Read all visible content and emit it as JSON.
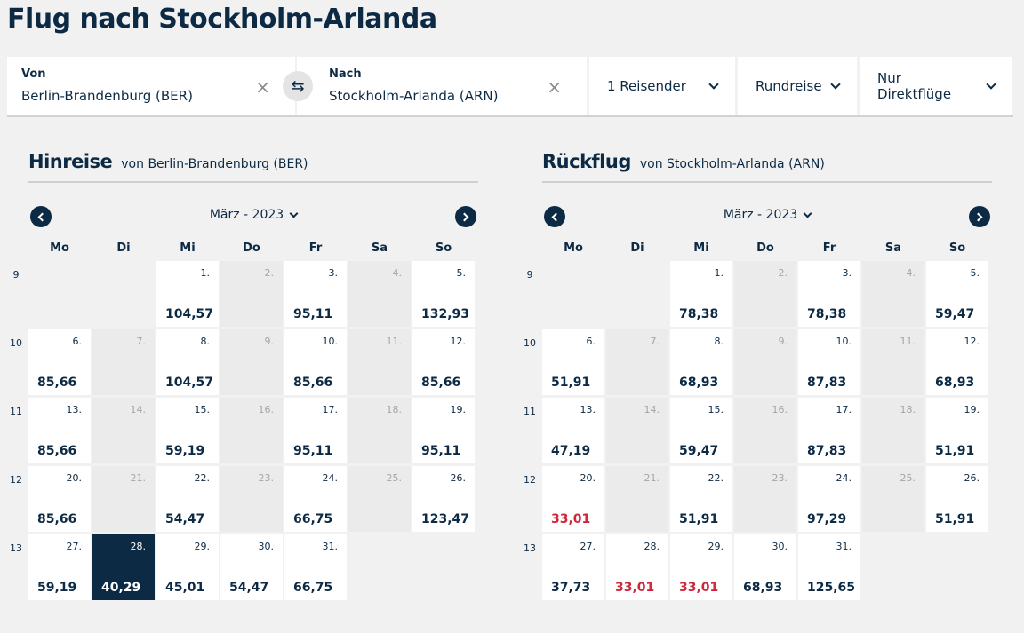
{
  "title": "Flug nach Stockholm-Arlanda",
  "search": {
    "from_label": "Von",
    "from_value": "Berlin-Brandenburg (BER)",
    "to_label": "Nach",
    "to_value": "Stockholm-Arlanda (ARN)",
    "clear_glyph": "×",
    "swap_glyph": "⇆",
    "travelers": "1 Reisender",
    "trip_type": "Rundreise",
    "flight_filter": "Nur Direktflüge"
  },
  "weekdays": [
    "Mo",
    "Di",
    "Mi",
    "Do",
    "Fr",
    "Sa",
    "So"
  ],
  "outbound": {
    "title": "Hinreise",
    "subtitle": "von Berlin-Brandenburg (BER)",
    "month": "März - 2023",
    "weeks": [
      {
        "num": "9",
        "days": [
          null,
          null,
          {
            "d": "1.",
            "p": "104,57"
          },
          {
            "d": "2.",
            "u": true
          },
          {
            "d": "3.",
            "p": "95,11"
          },
          {
            "d": "4.",
            "u": true
          },
          {
            "d": "5.",
            "p": "132,93"
          }
        ]
      },
      {
        "num": "10",
        "days": [
          {
            "d": "6.",
            "p": "85,66"
          },
          {
            "d": "7.",
            "u": true
          },
          {
            "d": "8.",
            "p": "104,57"
          },
          {
            "d": "9.",
            "u": true
          },
          {
            "d": "10.",
            "p": "85,66"
          },
          {
            "d": "11.",
            "u": true
          },
          {
            "d": "12.",
            "p": "85,66"
          }
        ]
      },
      {
        "num": "11",
        "days": [
          {
            "d": "13.",
            "p": "85,66"
          },
          {
            "d": "14.",
            "u": true
          },
          {
            "d": "15.",
            "p": "59,19"
          },
          {
            "d": "16.",
            "u": true
          },
          {
            "d": "17.",
            "p": "95,11"
          },
          {
            "d": "18.",
            "u": true
          },
          {
            "d": "19.",
            "p": "95,11"
          }
        ]
      },
      {
        "num": "12",
        "days": [
          {
            "d": "20.",
            "p": "85,66"
          },
          {
            "d": "21.",
            "u": true
          },
          {
            "d": "22.",
            "p": "54,47"
          },
          {
            "d": "23.",
            "u": true
          },
          {
            "d": "24.",
            "p": "66,75"
          },
          {
            "d": "25.",
            "u": true
          },
          {
            "d": "26.",
            "p": "123,47"
          }
        ]
      },
      {
        "num": "13",
        "days": [
          {
            "d": "27.",
            "p": "59,19"
          },
          {
            "d": "28.",
            "p": "40,29",
            "sel": true
          },
          {
            "d": "29.",
            "p": "45,01"
          },
          {
            "d": "30.",
            "p": "54,47"
          },
          {
            "d": "31.",
            "p": "66,75"
          },
          null,
          null
        ]
      }
    ]
  },
  "return": {
    "title": "Rückflug",
    "subtitle": "von Stockholm-Arlanda (ARN)",
    "month": "März - 2023",
    "weeks": [
      {
        "num": "9",
        "days": [
          null,
          null,
          {
            "d": "1.",
            "p": "78,38"
          },
          {
            "d": "2.",
            "u": true
          },
          {
            "d": "3.",
            "p": "78,38"
          },
          {
            "d": "4.",
            "u": true
          },
          {
            "d": "5.",
            "p": "59,47"
          }
        ]
      },
      {
        "num": "10",
        "days": [
          {
            "d": "6.",
            "p": "51,91"
          },
          {
            "d": "7.",
            "u": true
          },
          {
            "d": "8.",
            "p": "68,93"
          },
          {
            "d": "9.",
            "u": true
          },
          {
            "d": "10.",
            "p": "87,83"
          },
          {
            "d": "11.",
            "u": true
          },
          {
            "d": "12.",
            "p": "68,93"
          }
        ]
      },
      {
        "num": "11",
        "days": [
          {
            "d": "13.",
            "p": "47,19"
          },
          {
            "d": "14.",
            "u": true
          },
          {
            "d": "15.",
            "p": "59,47"
          },
          {
            "d": "16.",
            "u": true
          },
          {
            "d": "17.",
            "p": "87,83"
          },
          {
            "d": "18.",
            "u": true
          },
          {
            "d": "19.",
            "p": "51,91"
          }
        ]
      },
      {
        "num": "12",
        "days": [
          {
            "d": "20.",
            "p": "33,01",
            "cheap": true
          },
          {
            "d": "21.",
            "u": true
          },
          {
            "d": "22.",
            "p": "51,91"
          },
          {
            "d": "23.",
            "u": true
          },
          {
            "d": "24.",
            "p": "97,29"
          },
          {
            "d": "25.",
            "u": true
          },
          {
            "d": "26.",
            "p": "51,91"
          }
        ]
      },
      {
        "num": "13",
        "days": [
          {
            "d": "27.",
            "p": "37,73"
          },
          {
            "d": "28.",
            "p": "33,01",
            "cheap": true
          },
          {
            "d": "29.",
            "p": "33,01",
            "cheap": true
          },
          {
            "d": "30.",
            "p": "68,93"
          },
          {
            "d": "31.",
            "p": "125,65"
          },
          null,
          null
        ]
      }
    ]
  },
  "colors": {
    "navy": "#0d2a45",
    "cheap": "#d0263a"
  }
}
